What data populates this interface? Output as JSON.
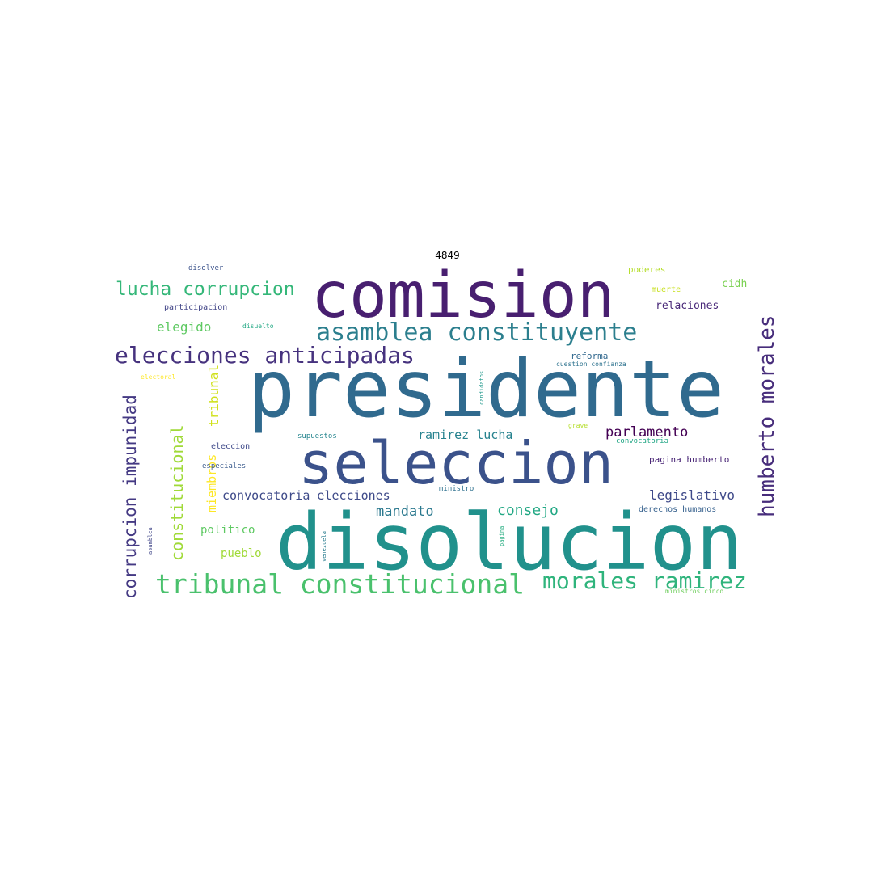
{
  "title": "4849",
  "words": {
    "comision": {
      "text": "comision",
      "color": "#481f70"
    },
    "presidente": {
      "text": "presidente",
      "color": "#306a8e"
    },
    "seleccion": {
      "text": "seleccion",
      "color": "#3b528b"
    },
    "disolucion": {
      "text": "disolucion",
      "color": "#21918c"
    },
    "asamblea_constituyente": {
      "text": "asamblea constituyente",
      "color": "#2c7f8e"
    },
    "elecciones_anticipadas": {
      "text": "elecciones anticipadas",
      "color": "#46327e"
    },
    "lucha_corrupcion": {
      "text": "lucha corrupcion",
      "color": "#35b779"
    },
    "humberto_morales": {
      "text": "humberto morales",
      "color": "#472d7b"
    },
    "tribunal_constitucional": {
      "text": "tribunal constitucional",
      "color": "#4ac16d"
    },
    "morales_ramirez": {
      "text": "morales ramirez",
      "color": "#2fb47c"
    },
    "corrupcion_impunidad": {
      "text": "corrupcion impunidad",
      "color": "#443983"
    },
    "constitucional": {
      "text": "constitucional",
      "color": "#a0da39"
    },
    "tribunal": {
      "text": "tribunal",
      "color": "#d0e11c"
    },
    "miembros": {
      "text": "miembros",
      "color": "#fde725"
    },
    "elegido": {
      "text": "elegido",
      "color": "#5ec962"
    },
    "parlamento": {
      "text": "parlamento",
      "color": "#440154"
    },
    "ramirez_lucha": {
      "text": "ramirez lucha",
      "color": "#26828e"
    },
    "legislativo": {
      "text": "legislativo",
      "color": "#3e4989"
    },
    "mandato": {
      "text": "mandato",
      "color": "#2a788e"
    },
    "consejo": {
      "text": "consejo",
      "color": "#22a884"
    },
    "convocatoria_elecciones": {
      "text": "convocatoria elecciones",
      "color": "#3e4a89"
    },
    "politico": {
      "text": "politico",
      "color": "#5ec962"
    },
    "pueblo": {
      "text": "pueblo",
      "color": "#a0da39"
    },
    "poderes": {
      "text": "poderes",
      "color": "#b5de2b"
    },
    "cidh": {
      "text": "cidh",
      "color": "#7ad151"
    },
    "muerte": {
      "text": "muerte",
      "color": "#c8e020"
    },
    "relaciones": {
      "text": "relaciones",
      "color": "#482878"
    },
    "reforma": {
      "text": "reforma",
      "color": "#31688e"
    },
    "cuestion_confianza": {
      "text": "cuestion confianza",
      "color": "#2c728e"
    },
    "pagina_humberto": {
      "text": "pagina humberto",
      "color": "#482475"
    },
    "derechos_humanos": {
      "text": "derechos humanos",
      "color": "#35608d"
    },
    "convocatoria": {
      "text": "convocatoria",
      "color": "#21a685"
    },
    "ministros_cinco": {
      "text": "ministros cinco",
      "color": "#6ccd5a"
    },
    "disolver": {
      "text": "disolver",
      "color": "#3b528b"
    },
    "participacion": {
      "text": "participacion",
      "color": "#414487"
    },
    "disuelto": {
      "text": "disuelto",
      "color": "#22a884"
    },
    "electoral": {
      "text": "electoral",
      "color": "#fde725"
    },
    "eleccion": {
      "text": "eleccion",
      "color": "#3e4989"
    },
    "especiales": {
      "text": "especiales",
      "color": "#38598c"
    },
    "supuestos": {
      "text": "supuestos",
      "color": "#25858e"
    },
    "ministro": {
      "text": "ministro",
      "color": "#2d708e"
    },
    "grave": {
      "text": "grave",
      "color": "#b5de2b"
    },
    "candidatos": {
      "text": "candidatos",
      "color": "#1f988b"
    },
    "asamblea": {
      "text": "asamblea",
      "color": "#404688"
    },
    "venezuela": {
      "text": "venezuela",
      "color": "#287c8e"
    },
    "pagina": {
      "text": "pagina",
      "color": "#27ad81"
    }
  }
}
